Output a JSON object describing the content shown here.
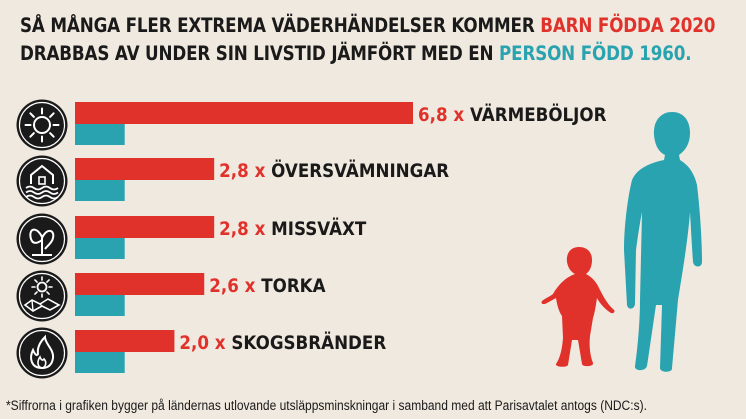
{
  "title": {
    "part1": "SÅ MÅNGA FLER EXTREMA VÄDERHÄNDELSER KOMMER ",
    "highlight_child": "BARN FÖDDA 2020",
    "part2": "DRABBAS AV UNDER SIN LIVSTID JÄMFÖRT MED EN ",
    "highlight_adult": "PERSON FÖDD 1960."
  },
  "colors": {
    "child": "#e1312b",
    "adult": "#2aa3b1",
    "icon_bg": "#1a1a1a",
    "background": "#f0e9df"
  },
  "chart_data": {
    "type": "bar",
    "orientation": "horizontal",
    "categories": [
      "VÄRMEBÖLJOR",
      "ÖVERSVÄMNINGAR",
      "MISSVÄXT",
      "TORKA",
      "SKOGSBRÄNDER"
    ],
    "series": [
      {
        "values": [
          6.8,
          2.8,
          2.8,
          2.6,
          2.0
        ]
      },
      {
        "values": [
          1,
          1,
          1,
          1,
          1
        ]
      }
    ],
    "labels": [
      "6,8 x",
      "2,8 x",
      "2,8 x",
      "2,6 x",
      "2,0 x"
    ],
    "icons": [
      "sun-icon",
      "flooded-house-icon",
      "withered-plant-icon",
      "drought-icon",
      "fire-icon"
    ],
    "xlim": [
      0,
      6.8
    ]
  },
  "footnote": "*Siffrorna i grafiken bygger på ländernas utlovande utsläppsminskningar i samband med att Parisavtalet antogs (NDC:s)."
}
